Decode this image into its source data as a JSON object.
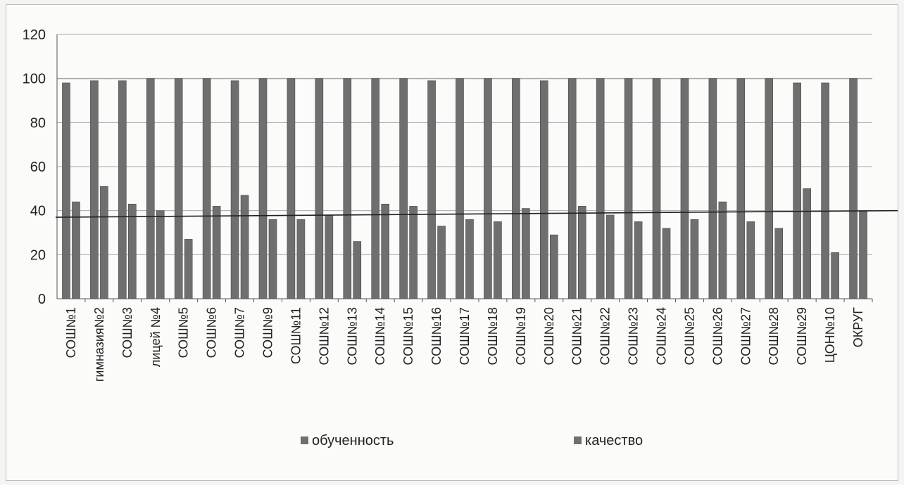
{
  "chart_data": {
    "type": "bar",
    "categories": [
      "СОШ№1",
      "гимназия№2",
      "СОШ№3",
      "лицей №4",
      "СОШ№5",
      "СОШ№6",
      "СОШ№7",
      "СОШ№9",
      "СОШ№11",
      "СОШ№12",
      "СОШ№13",
      "СОШ№14",
      "СОШ№15",
      "СОШ№16",
      "СОШ№17",
      "СОШ№18",
      "СОШ№19",
      "СОШ№20",
      "СОШ№21",
      "СОШ№22",
      "СОШ№23",
      "СОШ№24",
      "СОШ№25",
      "СОШ№26",
      "СОШ№27",
      "СОШ№28",
      "СОШ№29",
      "ЦОН№10",
      "ОКРУГ"
    ],
    "series": [
      {
        "name": "обученность",
        "values": [
          98,
          99,
          99,
          100,
          100,
          100,
          99,
          100,
          100,
          100,
          100,
          100,
          100,
          99,
          100,
          100,
          100,
          99,
          100,
          100,
          100,
          100,
          100,
          100,
          100,
          100,
          98,
          98,
          100
        ]
      },
      {
        "name": "качество",
        "values": [
          44,
          51,
          43,
          40,
          27,
          42,
          47,
          36,
          36,
          38,
          26,
          43,
          42,
          33,
          36,
          35,
          41,
          29,
          42,
          38,
          35,
          32,
          36,
          44,
          35,
          32,
          50,
          21,
          40
        ]
      }
    ],
    "ylim": [
      0,
      120
    ],
    "yticks": [
      0,
      20,
      40,
      60,
      80,
      100,
      120
    ],
    "grid": true,
    "legend": "bottom",
    "reference_line": {
      "y_start": 37,
      "y_end": 40
    },
    "colors": {
      "bars": "#6f6f6f",
      "grid": "#a9a9a9",
      "axis": "#555555",
      "reference": "#222222"
    }
  }
}
